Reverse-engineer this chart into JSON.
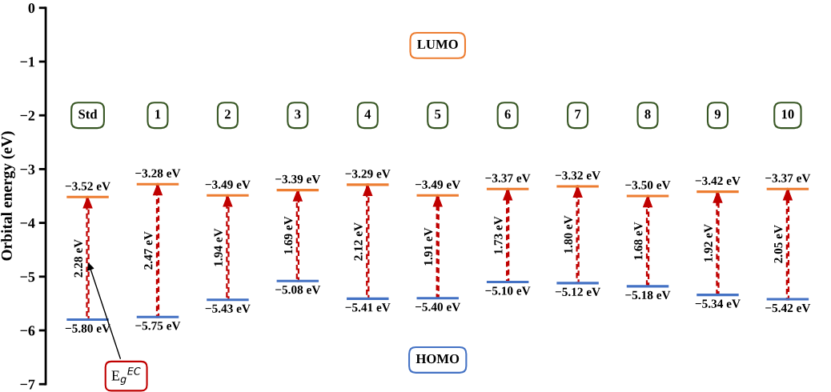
{
  "chart_data": {
    "type": "bar",
    "ylabel": "Orbital energy (eV)",
    "categories": [
      "Std",
      "1",
      "2",
      "3",
      "4",
      "5",
      "6",
      "7",
      "8",
      "9",
      "10"
    ],
    "base": [
      -5.8,
      -5.75,
      -5.43,
      -5.08,
      -5.41,
      -5.4,
      -5.1,
      -5.12,
      -5.18,
      -5.34,
      -5.42
    ],
    "values": [
      2.28,
      2.47,
      1.94,
      1.69,
      2.12,
      1.91,
      1.73,
      1.8,
      1.68,
      1.92,
      2.05
    ],
    "color": "#c00000",
    "value_labels": [
      "2.28 eV",
      "2.47 eV",
      "1.94 eV",
      "1.69 eV",
      "2.12 eV",
      "1.91 eV",
      "1.73 eV",
      "1.80 eV",
      "1.68 eV",
      "1.92 eV",
      "2.05 eV"
    ],
    "annotations": [
      "LUMO",
      "HOMO",
      {
        "text": "E$_{g}$$^{EC}$",
        "x": "Std",
        "y": -4.7
      },
      "−3.52 eV",
      "−3.28 eV",
      "−3.49 eV",
      "−3.39 eV",
      "−3.29 eV",
      "−3.49 eV",
      "−3.37 eV",
      "−3.32 eV",
      "−3.50 eV",
      "−3.42 eV",
      "−3.37 eV",
      "−5.80 eV",
      "−5.75 eV",
      "−5.43 eV",
      "−5.08 eV",
      "−5.41 eV",
      "−5.40 eV",
      "−5.10 eV",
      "−5.12 eV",
      "−5.18 eV",
      "−5.34 eV",
      "−5.42 eV"
    ],
    "ylim": [
      -7,
      0
    ],
    "yticks": [
      {
        "value": 0,
        "label": "0"
      },
      {
        "value": -1,
        "label": "−1"
      },
      {
        "value": -2,
        "label": "−2"
      },
      {
        "value": -3,
        "label": "−3"
      },
      {
        "value": -4,
        "label": "−4"
      },
      {
        "value": -5,
        "label": "−5"
      },
      {
        "value": -6,
        "label": "−6"
      },
      {
        "value": -7,
        "label": "−7"
      }
    ],
    "tick_labels": "y",
    "grid": false
  }
}
